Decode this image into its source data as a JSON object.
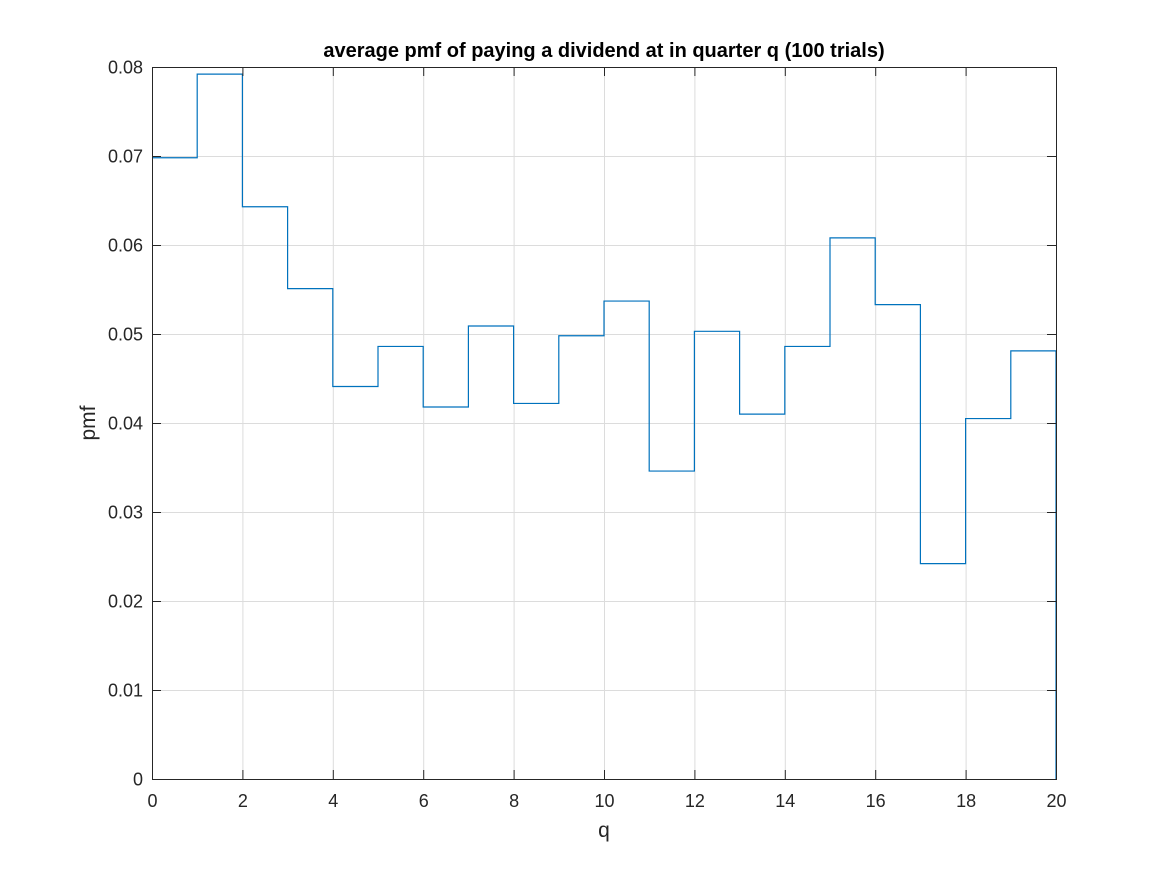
{
  "chart_data": {
    "type": "line",
    "style": "stairs",
    "title": "average pmf of paying a dividend at in quarter q (100 trials)",
    "xlabel": "q",
    "ylabel": "pmf",
    "xlim": [
      0,
      20
    ],
    "ylim": [
      0,
      0.08
    ],
    "grid": true,
    "xticks": [
      0,
      2,
      4,
      6,
      8,
      10,
      12,
      14,
      16,
      18,
      20
    ],
    "xtick_labels": [
      "0",
      "2",
      "4",
      "6",
      "8",
      "10",
      "12",
      "14",
      "16",
      "18",
      "20"
    ],
    "yticks": [
      0,
      0.01,
      0.02,
      0.03,
      0.04,
      0.05,
      0.06,
      0.07,
      0.08
    ],
    "ytick_labels": [
      "0",
      "0.01",
      "0.02",
      "0.03",
      "0.04",
      "0.05",
      "0.06",
      "0.07",
      "0.08"
    ],
    "series": [
      {
        "color": "#0072bd",
        "x": [
          0,
          1,
          2,
          3,
          4,
          5,
          6,
          7,
          8,
          9,
          10,
          11,
          12,
          13,
          14,
          15,
          16,
          17,
          18,
          19
        ],
        "values": [
          0.0698,
          0.0792,
          0.0643,
          0.0551,
          0.0441,
          0.0486,
          0.0418,
          0.0509,
          0.0422,
          0.0498,
          0.0537,
          0.0346,
          0.0503,
          0.041,
          0.0486,
          0.0608,
          0.0533,
          0.0242,
          0.0405,
          0.0481
        ]
      }
    ]
  }
}
